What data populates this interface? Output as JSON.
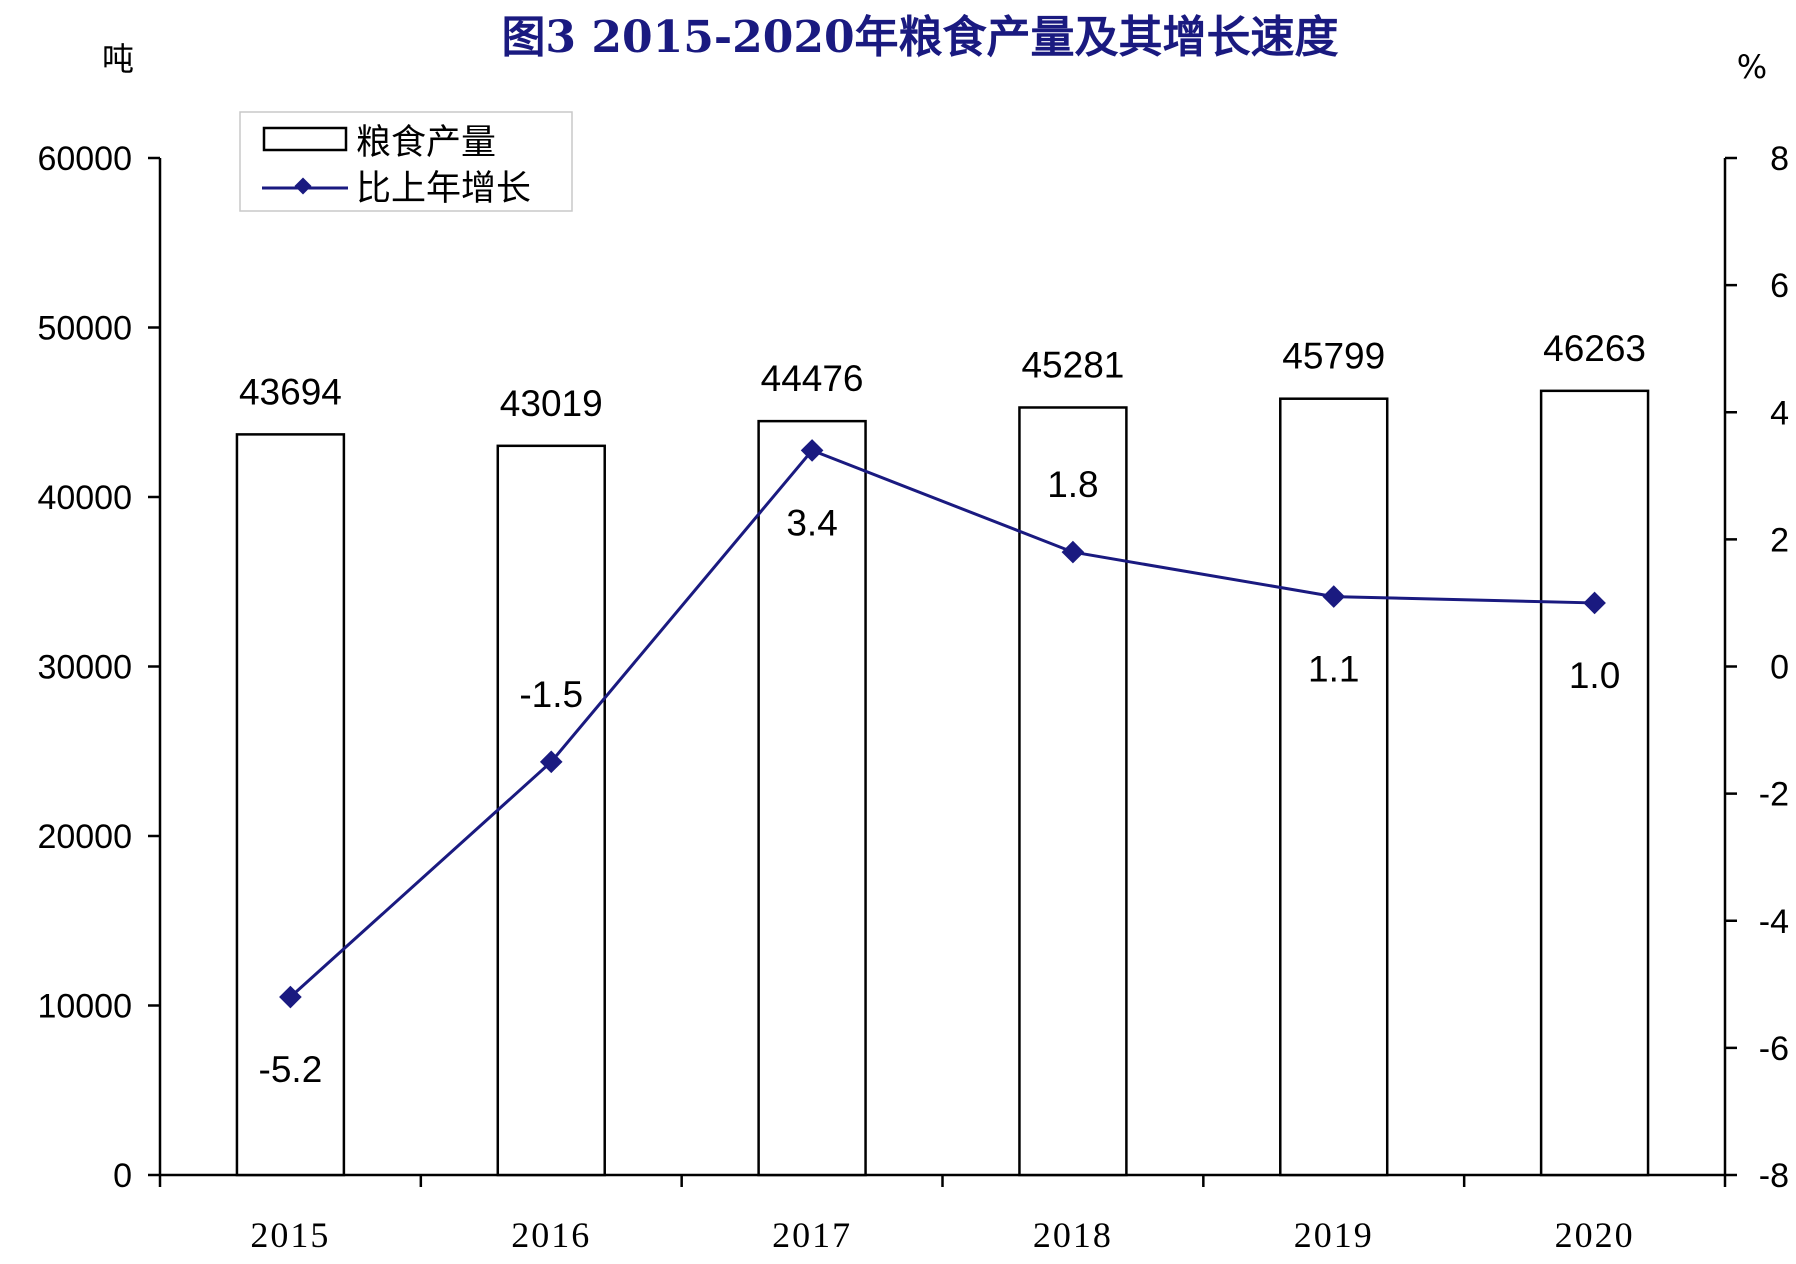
{
  "chart_data": {
    "type": "bar+line",
    "title": "图3 2015-2020年粮食产量及其增长速度",
    "y_left_unit": "吨",
    "y_right_unit": "%",
    "categories": [
      "2015",
      "2016",
      "2017",
      "2018",
      "2019",
      "2020"
    ],
    "y_left_ticks": [
      "0",
      "10000",
      "20000",
      "30000",
      "40000",
      "50000",
      "60000"
    ],
    "y_right_ticks": [
      "-8",
      "-6",
      "-4",
      "-2",
      "0",
      "2",
      "4",
      "6",
      "8"
    ],
    "y_left_range": [
      0,
      60000
    ],
    "y_right_range": [
      -8,
      8
    ],
    "series": [
      {
        "name": "粮食产量",
        "type": "bar",
        "axis": "left",
        "values": [
          43694,
          43019,
          44476,
          45281,
          45799,
          46263
        ],
        "labels": [
          "43694",
          "43019",
          "44476",
          "45281",
          "45799",
          "46263"
        ]
      },
      {
        "name": "比上年增长",
        "type": "line",
        "axis": "right",
        "values": [
          -5.2,
          -1.5,
          3.4,
          1.8,
          1.1,
          1.0
        ],
        "labels": [
          "-5.2",
          "-1.5",
          "3.4",
          "1.8",
          "1.1",
          "1.0"
        ]
      }
    ],
    "legend": {
      "position": "top-left",
      "entries": [
        "粮食产量",
        "比上年增长"
      ]
    },
    "grid": false,
    "colors": {
      "bar_fill": "#ffffff",
      "bar_stroke": "#000000",
      "line": "#1a1a80",
      "title": "#1a1a80"
    }
  }
}
